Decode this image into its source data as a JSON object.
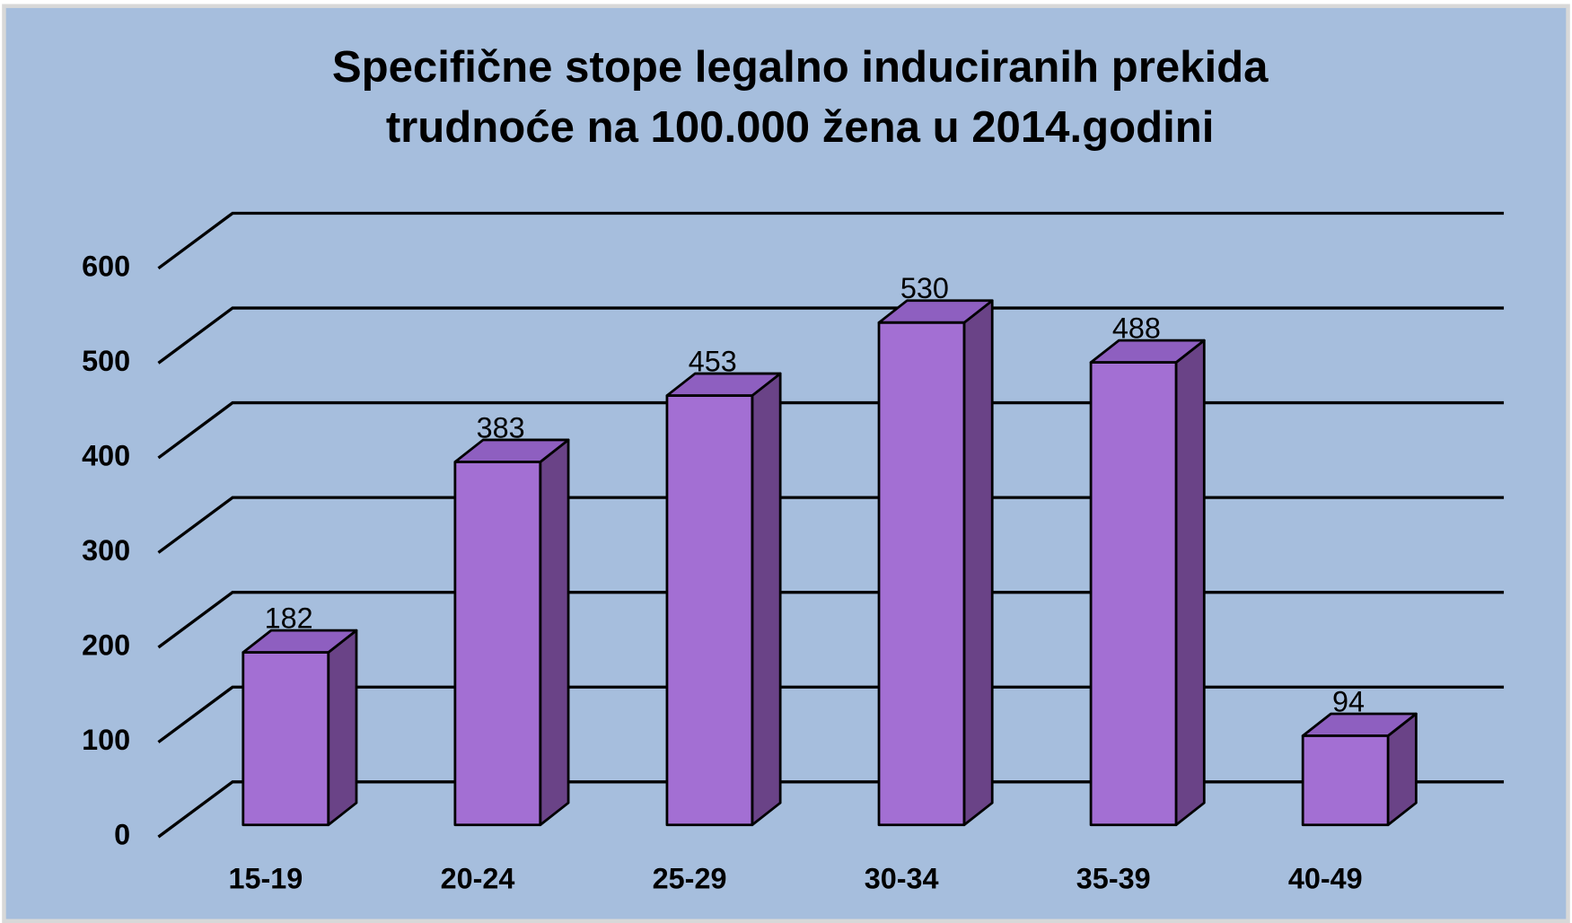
{
  "chart_data": {
    "type": "bar3d",
    "title": [
      "Specifične  stope  legalno  induciranih  prekida",
      "trudnoće  na  100.000  žena  u  2014.godini"
    ],
    "categories": [
      "15-19",
      "20-24",
      "25-29",
      "30-34",
      "35-39",
      "40-49"
    ],
    "values": [
      182,
      383,
      453,
      530,
      488,
      94
    ],
    "color": "#a36fd3",
    "ylim": [
      0,
      600
    ],
    "yticks": [
      0,
      100,
      200,
      300,
      400,
      500,
      600
    ],
    "grid": true
  }
}
